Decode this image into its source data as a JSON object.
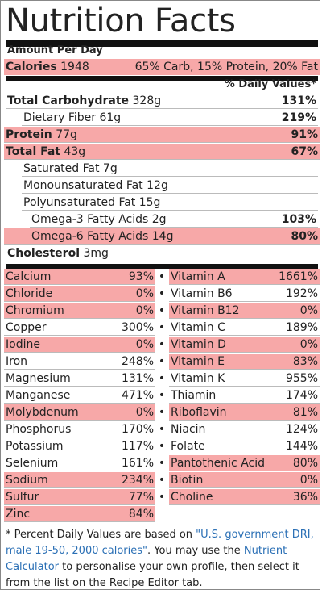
{
  "title": "Nutrition Facts",
  "amount_per": "Amount Per Day",
  "calories": {
    "label": "Calories",
    "value": "1948",
    "split": "65% Carb, 15% Protein, 20% Fat"
  },
  "dv_header": "% Daily Values*",
  "macros": [
    {
      "label": "Total Carbohydrate",
      "amount": "328g",
      "dv": "131%",
      "bold": true,
      "highlight": false,
      "indent": 0
    },
    {
      "label": "Dietary Fiber",
      "amount": "61g",
      "dv": "219%",
      "bold": false,
      "highlight": false,
      "indent": 1
    },
    {
      "label": "Protein",
      "amount": "77g",
      "dv": "91%",
      "bold": true,
      "highlight": true,
      "indent": 0
    },
    {
      "label": "Total Fat",
      "amount": "43g",
      "dv": "67%",
      "bold": true,
      "highlight": true,
      "indent": 0
    },
    {
      "label": "Saturated Fat",
      "amount": "7g",
      "dv": "",
      "bold": false,
      "highlight": false,
      "indent": 1
    },
    {
      "label": "Monounsaturated Fat",
      "amount": "12g",
      "dv": "",
      "bold": false,
      "highlight": false,
      "indent": 1
    },
    {
      "label": "Polyunsaturated Fat",
      "amount": "15g",
      "dv": "",
      "bold": false,
      "highlight": false,
      "indent": 1
    },
    {
      "label": "Omega-3 Fatty Acids",
      "amount": "2g",
      "dv": "103%",
      "bold": false,
      "highlight": false,
      "indent": 2
    },
    {
      "label": "Omega-6 Fatty Acids",
      "amount": "14g",
      "dv": "80%",
      "bold": false,
      "highlight": true,
      "indent": 2
    },
    {
      "label": "Cholesterol",
      "amount": "3mg",
      "dv": "",
      "bold": true,
      "highlight": false,
      "indent": 0
    }
  ],
  "minerals": [
    {
      "name": "Calcium",
      "dv": "93%",
      "highlight": true
    },
    {
      "name": "Chloride",
      "dv": "0%",
      "highlight": true
    },
    {
      "name": "Chromium",
      "dv": "0%",
      "highlight": true
    },
    {
      "name": "Copper",
      "dv": "300%",
      "highlight": false
    },
    {
      "name": "Iodine",
      "dv": "0%",
      "highlight": true
    },
    {
      "name": "Iron",
      "dv": "248%",
      "highlight": false
    },
    {
      "name": "Magnesium",
      "dv": "131%",
      "highlight": false
    },
    {
      "name": "Manganese",
      "dv": "471%",
      "highlight": false
    },
    {
      "name": "Molybdenum",
      "dv": "0%",
      "highlight": true
    },
    {
      "name": "Phosphorus",
      "dv": "170%",
      "highlight": false
    },
    {
      "name": "Potassium",
      "dv": "117%",
      "highlight": false
    },
    {
      "name": "Selenium",
      "dv": "161%",
      "highlight": false
    },
    {
      "name": "Sodium",
      "dv": "234%",
      "highlight": true
    },
    {
      "name": "Sulfur",
      "dv": "77%",
      "highlight": true
    },
    {
      "name": "Zinc",
      "dv": "84%",
      "highlight": true
    }
  ],
  "vitamins": [
    {
      "name": "Vitamin A",
      "dv": "1661%",
      "highlight": true
    },
    {
      "name": "Vitamin B6",
      "dv": "192%",
      "highlight": false
    },
    {
      "name": "Vitamin B12",
      "dv": "0%",
      "highlight": true
    },
    {
      "name": "Vitamin C",
      "dv": "189%",
      "highlight": false
    },
    {
      "name": "Vitamin D",
      "dv": "0%",
      "highlight": true
    },
    {
      "name": "Vitamin E",
      "dv": "83%",
      "highlight": true
    },
    {
      "name": "Vitamin K",
      "dv": "955%",
      "highlight": false
    },
    {
      "name": "Thiamin",
      "dv": "174%",
      "highlight": false
    },
    {
      "name": "Riboflavin",
      "dv": "81%",
      "highlight": true
    },
    {
      "name": "Niacin",
      "dv": "124%",
      "highlight": false
    },
    {
      "name": "Folate",
      "dv": "144%",
      "highlight": false
    },
    {
      "name": "Pantothenic Acid",
      "dv": "80%",
      "highlight": true
    },
    {
      "name": "Biotin",
      "dv": "0%",
      "highlight": true
    },
    {
      "name": "Choline",
      "dv": "36%",
      "highlight": true
    }
  ],
  "separator": "•",
  "footnote": {
    "text1": "* Percent Daily Values are based on ",
    "link1": "\"U.S. government DRI, male 19-50, 2000 calories\"",
    "text2": ". You may use the ",
    "link2": "Nutrient Calculator",
    "text3": " to personalise your own profile, then select it from the list on the Recipe Editor tab."
  },
  "colors": {
    "highlight": "#f7a8a8",
    "link": "#2a6fb5",
    "rule": "#111111"
  }
}
